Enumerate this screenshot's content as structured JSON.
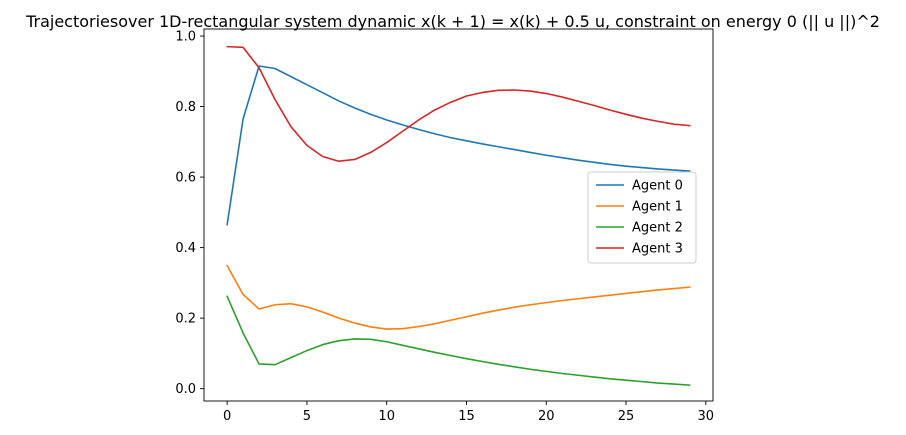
{
  "chart_data": {
    "type": "line",
    "title": "Trajectoriesover 1D-rectangular system dynamic x(k + 1) = x(k) + 0.5 u, constraint on energy 0 (|| u ||)^2",
    "xlabel": "",
    "ylabel": "",
    "xlim": [
      -1.45,
      30.45
    ],
    "ylim": [
      -0.035,
      1.02
    ],
    "x_ticks": [
      0,
      5,
      10,
      15,
      20,
      25,
      30
    ],
    "y_ticks": [
      0.0,
      0.2,
      0.4,
      0.6,
      0.8,
      1.0
    ],
    "x_tick_labels": [
      "0",
      "5",
      "10",
      "15",
      "20",
      "25",
      "30"
    ],
    "y_tick_labels": [
      "0.0",
      "0.2",
      "0.4",
      "0.6",
      "0.8",
      "1.0"
    ],
    "grid": false,
    "legend_position": "center-right",
    "x": [
      0,
      1,
      2,
      3,
      4,
      5,
      6,
      7,
      8,
      9,
      10,
      11,
      12,
      13,
      14,
      15,
      16,
      17,
      18,
      19,
      20,
      21,
      22,
      23,
      24,
      25,
      26,
      27,
      28,
      29
    ],
    "series": [
      {
        "name": "Agent 0",
        "color": "#1f77b4",
        "values": [
          0.465,
          0.765,
          0.915,
          0.908,
          0.885,
          0.862,
          0.839,
          0.816,
          0.796,
          0.778,
          0.762,
          0.748,
          0.735,
          0.723,
          0.712,
          0.703,
          0.694,
          0.686,
          0.678,
          0.67,
          0.662,
          0.655,
          0.648,
          0.642,
          0.636,
          0.631,
          0.627,
          0.623,
          0.62,
          0.617
        ]
      },
      {
        "name": "Agent 1",
        "color": "#ff7f0e",
        "values": [
          0.349,
          0.267,
          0.226,
          0.238,
          0.241,
          0.232,
          0.217,
          0.2,
          0.186,
          0.175,
          0.169,
          0.17,
          0.176,
          0.184,
          0.194,
          0.204,
          0.214,
          0.223,
          0.231,
          0.238,
          0.244,
          0.25,
          0.255,
          0.26,
          0.265,
          0.27,
          0.275,
          0.28,
          0.284,
          0.288
        ]
      },
      {
        "name": "Agent 2",
        "color": "#2ca02c",
        "values": [
          0.262,
          0.158,
          0.07,
          0.068,
          0.088,
          0.108,
          0.125,
          0.136,
          0.141,
          0.14,
          0.133,
          0.123,
          0.113,
          0.103,
          0.094,
          0.085,
          0.077,
          0.069,
          0.062,
          0.055,
          0.049,
          0.043,
          0.038,
          0.033,
          0.028,
          0.024,
          0.02,
          0.016,
          0.013,
          0.01
        ]
      },
      {
        "name": "Agent 3",
        "color": "#d62728",
        "values": [
          0.97,
          0.968,
          0.91,
          0.82,
          0.743,
          0.69,
          0.658,
          0.645,
          0.65,
          0.67,
          0.698,
          0.73,
          0.762,
          0.79,
          0.812,
          0.83,
          0.84,
          0.846,
          0.847,
          0.844,
          0.837,
          0.827,
          0.815,
          0.803,
          0.79,
          0.778,
          0.767,
          0.758,
          0.75,
          0.746
        ]
      }
    ]
  }
}
